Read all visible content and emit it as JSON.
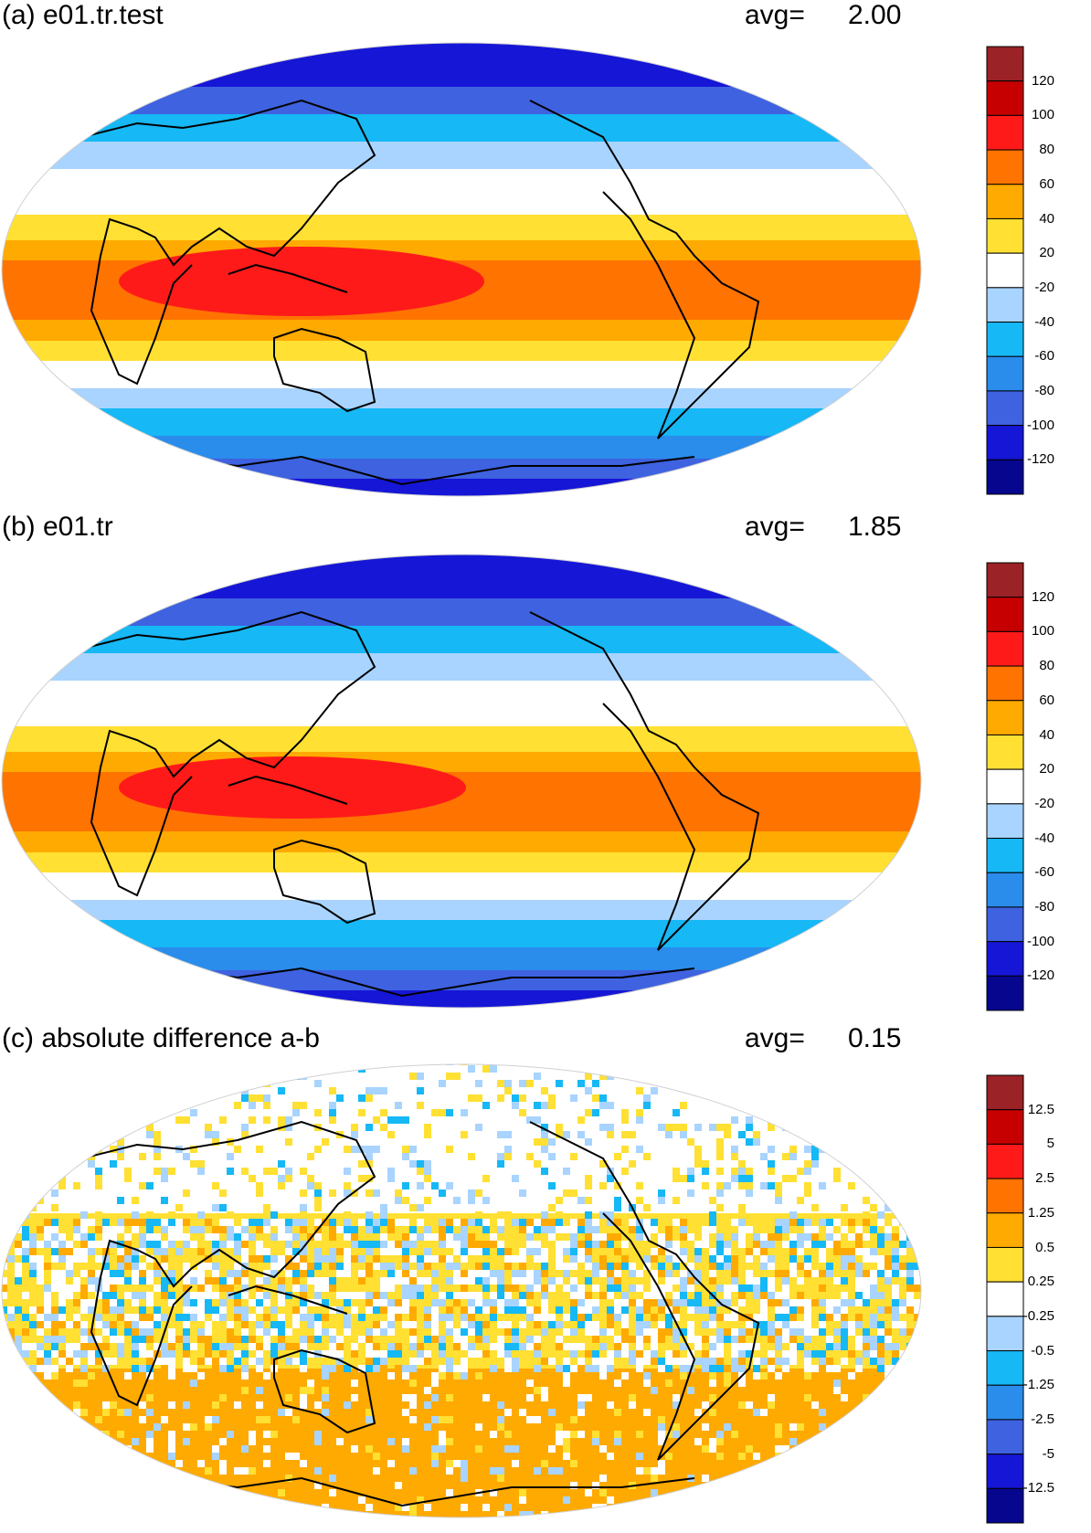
{
  "panels": [
    {
      "id": "a",
      "title": "(a) e01.tr.test",
      "avg_label": "avg=",
      "avg_value": "2.00",
      "colorbar": {
        "labels": [
          "120",
          "100",
          "80",
          "60",
          "40",
          "20",
          "-20",
          "-40",
          "-60",
          "-80",
          "-100",
          "-120"
        ],
        "colors": [
          "#9b2226",
          "#c60000",
          "#ff1a1a",
          "#ff7300",
          "#ffaa00",
          "#ffe033",
          "#ffffff",
          "#a8d4ff",
          "#16b8f5",
          "#2a8ceb",
          "#3e62e0",
          "#1616d6",
          "#06068f"
        ]
      }
    },
    {
      "id": "b",
      "title": "(b) e01.tr",
      "avg_label": "avg=",
      "avg_value": "1.85",
      "colorbar": {
        "labels": [
          "120",
          "100",
          "80",
          "60",
          "40",
          "20",
          "-20",
          "-40",
          "-60",
          "-80",
          "-100",
          "-120"
        ],
        "colors": [
          "#9b2226",
          "#c60000",
          "#ff1a1a",
          "#ff7300",
          "#ffaa00",
          "#ffe033",
          "#ffffff",
          "#a8d4ff",
          "#16b8f5",
          "#2a8ceb",
          "#3e62e0",
          "#1616d6",
          "#06068f"
        ]
      }
    },
    {
      "id": "c",
      "title": "(c) absolute difference a-b",
      "avg_label": "avg=",
      "avg_value": "0.15",
      "colorbar": {
        "labels": [
          "12.5",
          "5",
          "2.5",
          "1.25",
          "0.5",
          "0.25",
          "-0.25",
          "-0.5",
          "-1.25",
          "-2.5",
          "-5",
          "-12.5"
        ],
        "colors": [
          "#9b2226",
          "#c60000",
          "#ff1a1a",
          "#ff7300",
          "#ffaa00",
          "#ffe033",
          "#ffffff",
          "#a8d4ff",
          "#16b8f5",
          "#2a8ceb",
          "#3e62e0",
          "#1616d6",
          "#06068f"
        ]
      }
    }
  ]
}
